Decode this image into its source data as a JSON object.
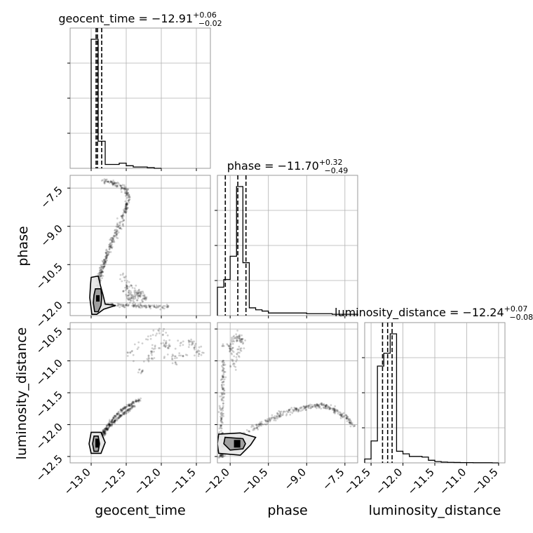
{
  "chart_data": {
    "type": "scatter",
    "parameters": [
      {
        "name": "geocent_time",
        "label": "geocent_time",
        "title": {
          "prefix": "geocent_time = ",
          "value": "−12.91",
          "upper": "+0.06",
          "lower": "−0.02"
        },
        "range": [
          -13.3,
          -11.3
        ],
        "ticks": [
          -13.0,
          -12.5,
          -12.0,
          -11.5
        ],
        "tick_labels": [
          "−13.0",
          "−12.5",
          "−12.0",
          "−11.5"
        ],
        "quantiles": [
          -12.93,
          -12.91,
          -12.85
        ],
        "histogram": {
          "edges": [
            -13.0,
            -12.9,
            -12.8,
            -12.7,
            -12.6,
            -12.5,
            -12.4,
            -12.3,
            -12.2,
            -12.1,
            -12.0
          ],
          "counts": [
            1.0,
            0.21,
            0.03,
            0.03,
            0.04,
            0.02,
            0.01,
            0.01,
            0.005,
            0.0
          ]
        }
      },
      {
        "name": "phase",
        "label": "phase",
        "title": {
          "prefix": "phase = ",
          "value": "−11.70",
          "upper": "+0.32",
          "lower": "−0.49"
        },
        "range": [
          -12.5,
          -7.0
        ],
        "ticks": [
          -12.0,
          -10.5,
          -9.0,
          -7.5
        ],
        "tick_labels": [
          "−12.0",
          "−10.5",
          "−9.0",
          "−7.5"
        ],
        "quantiles": [
          -12.19,
          -11.7,
          -11.38
        ],
        "histogram": {
          "edges": [
            -12.5,
            -12.25,
            -12.0,
            -11.75,
            -11.5,
            -11.25,
            -11.0,
            -10.75,
            -10.5,
            -10.0,
            -9.5,
            -9.0,
            -8.5,
            -8.0,
            -7.5,
            -7.0
          ],
          "counts": [
            0.22,
            0.28,
            0.46,
            1.0,
            0.41,
            0.06,
            0.045,
            0.035,
            0.02,
            0.02,
            0.02,
            0.015,
            0.015,
            0.01,
            0.01
          ]
        }
      },
      {
        "name": "luminosity_distance",
        "label": "luminosity_distance",
        "title": {
          "prefix": "luminosity_distance = ",
          "value": "−12.24",
          "upper": "+0.07",
          "lower": "−0.08"
        },
        "range": [
          -12.6,
          -10.4
        ],
        "ticks": [
          -12.5,
          -12.0,
          -11.5,
          -11.0,
          -10.5
        ],
        "tick_labels": [
          "−12.5",
          "−12.0",
          "−11.5",
          "−11.0",
          "−10.5"
        ],
        "quantiles": [
          -12.32,
          -12.24,
          -12.17
        ],
        "histogram": {
          "edges": [
            -12.6,
            -12.5,
            -12.4,
            -12.3,
            -12.2,
            -12.1,
            -12.0,
            -11.9,
            -11.8,
            -11.7,
            -11.6,
            -11.5,
            -11.4,
            -11.3,
            -11.2,
            -11.1,
            -11.0,
            -10.9,
            -10.8,
            -10.7,
            -10.6,
            -10.5
          ],
          "counts": [
            0.03,
            0.17,
            0.75,
            0.85,
            1.0,
            0.09,
            0.07,
            0.05,
            0.05,
            0.045,
            0.02,
            0.01,
            0.006,
            0.004,
            0.003,
            0.002,
            0.002,
            0.001,
            0.001,
            0.001,
            0.0
          ]
        }
      }
    ],
    "pairs": [
      {
        "x": "geocent_time",
        "y": "phase",
        "features": [
          {
            "kind": "scatter",
            "points": [
              [
                -12.96,
                -12.2
              ],
              [
                -12.9,
                -11.5
              ],
              [
                -12.9,
                -11.1
              ],
              [
                -12.86,
                -10.85
              ],
              [
                -12.84,
                -10.6
              ],
              [
                -12.8,
                -10.35
              ],
              [
                -12.76,
                -10.05
              ],
              [
                -12.72,
                -9.75
              ],
              [
                -12.66,
                -9.4
              ],
              [
                -12.6,
                -9.0
              ],
              [
                -12.55,
                -8.6
              ],
              [
                -12.5,
                -8.25
              ],
              [
                -12.47,
                -7.95
              ],
              [
                -12.5,
                -7.6
              ],
              [
                -12.58,
                -7.4
              ],
              [
                -12.7,
                -7.3
              ],
              [
                -12.84,
                -7.2
              ]
            ],
            "spread": 0.035
          },
          {
            "kind": "scatter",
            "points": [
              [
                -12.9,
                -12.05
              ],
              [
                -12.7,
                -12.08
              ],
              [
                -12.5,
                -12.1
              ],
              [
                -12.3,
                -12.12
              ],
              [
                -12.1,
                -12.13
              ],
              [
                -11.9,
                -12.15
              ]
            ],
            "spread": 0.03
          },
          {
            "kind": "scatter",
            "points": [
              [
                -12.5,
                -11.2
              ],
              [
                -12.47,
                -11.6
              ],
              [
                -12.42,
                -11.9
              ],
              [
                -12.3,
                -11.6
              ],
              [
                -12.25,
                -11.9
              ],
              [
                -12.6,
                -10.8
              ]
            ],
            "spread": 0.06
          }
        ],
        "contours": [
          [
            [
              -12.94,
              -11.45
            ],
            [
              -12.86,
              -11.45
            ],
            [
              -12.85,
              -11.8
            ],
            [
              -12.86,
              -12.1
            ],
            [
              -12.9,
              -12.35
            ],
            [
              -12.95,
              -12.35
            ],
            [
              -12.97,
              -12.0
            ],
            [
              -12.96,
              -11.7
            ]
          ],
          [
            [
              -13.0,
              -11.0
            ],
            [
              -12.9,
              -10.95
            ],
            [
              -12.87,
              -11.3
            ],
            [
              -12.83,
              -11.7
            ],
            [
              -12.8,
              -12.05
            ],
            [
              -12.65,
              -12.1
            ],
            [
              -12.82,
              -12.25
            ],
            [
              -12.92,
              -12.45
            ],
            [
              -12.99,
              -12.45
            ],
            [
              -13.02,
              -11.8
            ],
            [
              -13.01,
              -11.3
            ]
          ]
        ],
        "density_core": [
          [
            -12.93,
            -11.7
          ],
          [
            -12.88,
            -11.7
          ],
          [
            -12.88,
            -11.95
          ],
          [
            -12.93,
            -11.95
          ]
        ]
      },
      {
        "x": "geocent_time",
        "y": "luminosity_distance",
        "features": [
          {
            "kind": "scatter",
            "points": [
              [
                -12.95,
                -12.3
              ],
              [
                -12.88,
                -12.18
              ],
              [
                -12.82,
                -12.1
              ],
              [
                -12.75,
                -12.0
              ],
              [
                -12.68,
                -11.9
              ],
              [
                -12.6,
                -11.8
              ],
              [
                -12.5,
                -11.72
              ],
              [
                -12.4,
                -11.66
              ],
              [
                -12.3,
                -11.6
              ]
            ],
            "spread": 0.02
          },
          {
            "kind": "scatter",
            "points": [
              [
                -12.85,
                -12.2
              ],
              [
                -12.8,
                -12.12
              ],
              [
                -12.73,
                -12.02
              ],
              [
                -12.66,
                -11.94
              ],
              [
                -12.58,
                -11.86
              ],
              [
                -12.48,
                -11.78
              ],
              [
                -12.38,
                -11.7
              ]
            ],
            "spread": 0.02
          },
          {
            "kind": "scatter",
            "points": [
              [
                -12.3,
                -11.2
              ],
              [
                -12.1,
                -10.8
              ],
              [
                -11.6,
                -10.7
              ],
              [
                -11.4,
                -10.9
              ],
              [
                -12.6,
                -11.0
              ],
              [
                -12.0,
                -10.5
              ],
              [
                -11.8,
                -11.1
              ]
            ],
            "spread": 0.05
          }
        ],
        "contours": [
          [
            [
              -12.96,
              -12.18
            ],
            [
              -12.9,
              -12.18
            ],
            [
              -12.88,
              -12.3
            ],
            [
              -12.9,
              -12.42
            ],
            [
              -12.96,
              -12.42
            ],
            [
              -12.98,
              -12.3
            ]
          ],
          [
            [
              -13.0,
              -12.12
            ],
            [
              -12.86,
              -12.12
            ],
            [
              -12.8,
              -12.28
            ],
            [
              -12.86,
              -12.45
            ],
            [
              -13.0,
              -12.45
            ],
            [
              -13.03,
              -12.3
            ]
          ]
        ],
        "density_core": [
          [
            -12.94,
            -12.22
          ],
          [
            -12.89,
            -12.22
          ],
          [
            -12.89,
            -12.36
          ],
          [
            -12.94,
            -12.36
          ]
        ]
      },
      {
        "x": "phase",
        "y": "luminosity_distance",
        "features": [
          {
            "kind": "scatter",
            "points": [
              [
                -12.3,
                -12.35
              ],
              [
                -11.6,
                -12.2
              ],
              [
                -11.0,
                -12.05
              ],
              [
                -10.6,
                -11.95
              ],
              [
                -10.2,
                -11.88
              ],
              [
                -9.8,
                -11.8
              ],
              [
                -9.4,
                -11.76
              ],
              [
                -9.0,
                -11.72
              ],
              [
                -8.6,
                -11.7
              ],
              [
                -8.3,
                -11.7
              ],
              [
                -8.0,
                -11.74
              ],
              [
                -7.7,
                -11.82
              ],
              [
                -7.4,
                -11.9
              ],
              [
                -7.2,
                -12.0
              ]
            ],
            "spread": 0.04
          },
          {
            "kind": "scatter",
            "points": [
              [
                -12.35,
                -12.25
              ],
              [
                -12.35,
                -11.9
              ],
              [
                -12.3,
                -11.6
              ],
              [
                -12.28,
                -11.3
              ],
              [
                -12.25,
                -11.0
              ],
              [
                -12.4,
                -12.5
              ],
              [
                -12.3,
                -12.48
              ]
            ],
            "spread": 0.03
          },
          {
            "kind": "scatter",
            "points": [
              [
                -12.2,
                -10.8
              ],
              [
                -11.7,
                -10.6
              ],
              [
                -11.5,
                -10.7
              ],
              [
                -11.9,
                -11.1
              ],
              [
                -12.0,
                -10.75
              ]
            ],
            "spread": 0.05
          }
        ],
        "contours": [
          [
            [
              -12.2,
              -12.2
            ],
            [
              -11.5,
              -12.22
            ],
            [
              -11.4,
              -12.3
            ],
            [
              -11.5,
              -12.38
            ],
            [
              -12.0,
              -12.4
            ],
            [
              -12.25,
              -12.3
            ]
          ],
          [
            [
              -12.45,
              -12.15
            ],
            [
              -11.6,
              -12.13
            ],
            [
              -11.0,
              -12.2
            ],
            [
              -11.2,
              -12.32
            ],
            [
              -11.6,
              -12.48
            ],
            [
              -12.45,
              -12.45
            ],
            [
              -12.5,
              -12.3
            ]
          ]
        ],
        "density_core": [
          [
            -11.85,
            -12.24
          ],
          [
            -11.6,
            -12.24
          ],
          [
            -11.6,
            -12.36
          ],
          [
            -11.85,
            -12.36
          ]
        ]
      }
    ],
    "grid": true,
    "legend": "none"
  }
}
